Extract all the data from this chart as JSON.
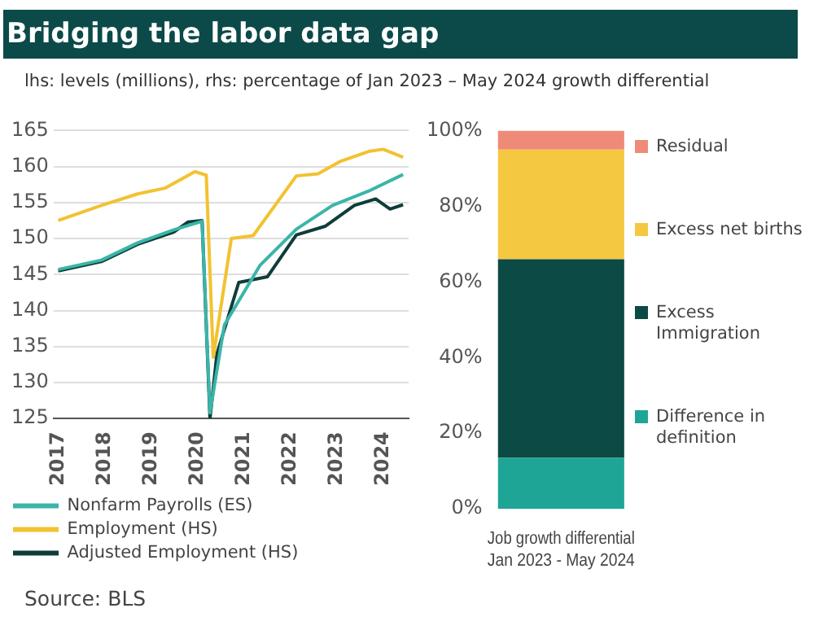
{
  "chart_data": [
    {
      "type": "line",
      "title": "Bridging the labor data gap",
      "subtitle": "lhs: levels (millions), rhs: percentage of Jan 2023 – May 2024 growth differential",
      "xlim": [
        2016.9,
        2024.55
      ],
      "xticks": [
        2017,
        2018,
        2019,
        2020,
        2021,
        2022,
        2023,
        2024
      ],
      "ylim": [
        125,
        165
      ],
      "yticks": [
        125,
        130,
        135,
        140,
        145,
        150,
        155,
        160,
        165
      ],
      "grid": "y",
      "legend": "bottom",
      "marker": "none",
      "line_style": "solid",
      "series": [
        {
          "name": "Nonfarm Payrolls (ES)",
          "color": "#3bb5a8",
          "x": [
            2017.0,
            2017.93,
            2018.71,
            2019.49,
            2020.1,
            2020.27,
            2020.58,
            2021.35,
            2022.13,
            2022.91,
            2023.69,
            2024.43
          ],
          "values": [
            145.7,
            147.0,
            149.4,
            151.2,
            152.4,
            125.8,
            138,
            146.3,
            151.3,
            154.6,
            156.6,
            158.9
          ]
        },
        {
          "name": "Employment (HS)",
          "color": "#f2c230",
          "x": [
            2017.0,
            2017.93,
            2018.71,
            2019.3,
            2019.95,
            2020.19,
            2020.34,
            2020.73,
            2021.2,
            2022.13,
            2022.6,
            2023.07,
            2023.69,
            2024.0,
            2024.43
          ],
          "values": [
            152.5,
            154.6,
            156.2,
            157,
            159.3,
            158.8,
            133.5,
            150,
            150.4,
            158.7,
            159,
            160.7,
            162.1,
            162.4,
            161.3
          ]
        },
        {
          "name": "Adjusted Employment (HS)",
          "color": "#0f3d3a",
          "x": [
            2017.0,
            2017.93,
            2018.71,
            2019.49,
            2019.8,
            2020.1,
            2020.27,
            2020.42,
            2020.89,
            2021.51,
            2022.13,
            2022.75,
            2023.38,
            2023.84,
            2024.15,
            2024.43
          ],
          "values": [
            145.5,
            146.8,
            149.2,
            150.9,
            152.3,
            152.5,
            125,
            134,
            143.9,
            144.7,
            150.5,
            151.7,
            154.6,
            155.5,
            154.1,
            154.7
          ]
        }
      ]
    },
    {
      "type": "bar",
      "stacked": true,
      "categories": [
        null
      ],
      "xlabel": "Job growth differential\nJan 2023 - May 2024",
      "ylim": [
        0,
        100
      ],
      "yticks": [
        {
          "value": 0,
          "label": "0%"
        },
        {
          "value": 20,
          "label": "20%"
        },
        {
          "value": 40,
          "label": "40%"
        },
        {
          "value": 60,
          "label": "60%"
        },
        {
          "value": 80,
          "label": "80%"
        },
        {
          "value": 100,
          "label": "100%"
        }
      ],
      "legend": "right",
      "annotations": [
        "Source: BLS"
      ],
      "series": [
        {
          "name": "Difference in definition",
          "color": "#1fa595",
          "values": [
            13.5
          ]
        },
        {
          "name": "Excess Immigration",
          "color": "#0c4a46",
          "values": [
            52.5
          ]
        },
        {
          "name": "Excess net births",
          "color": "#f5c842",
          "values": [
            29
          ]
        },
        {
          "name": "Residual",
          "color": "#f08a78",
          "values": [
            5
          ]
        }
      ]
    }
  ]
}
